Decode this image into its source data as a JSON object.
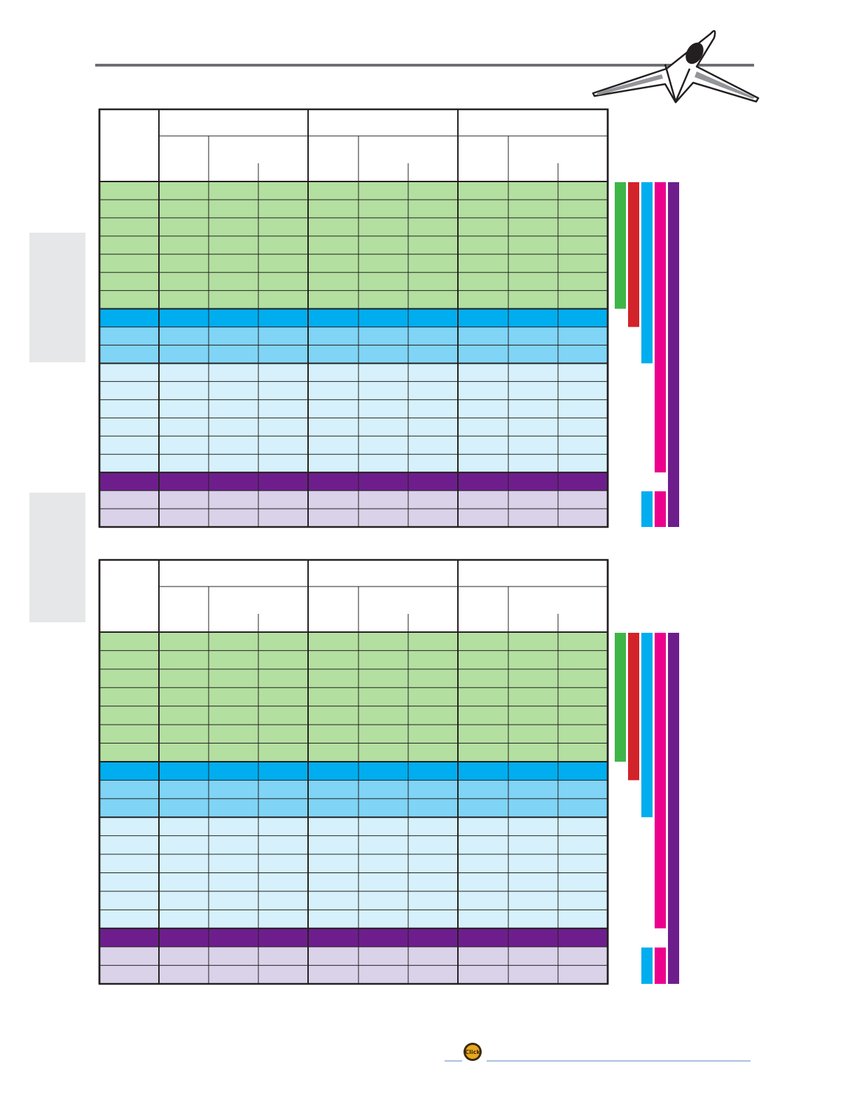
{
  "footer": {
    "button": "Click"
  }
}
